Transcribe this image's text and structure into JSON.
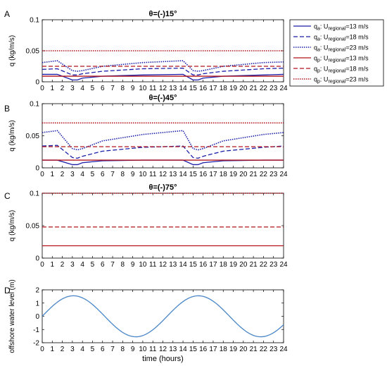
{
  "colors": {
    "blue": "#1b1fa8",
    "red": "#b2151c",
    "water": "#4a86c8",
    "axis": "#000000"
  },
  "legend": {
    "entries": [
      {
        "sub": "a",
        "regional": "regional",
        "value": "=13 m/s",
        "color": "#1b1fa8",
        "dash": "solid"
      },
      {
        "sub": "a",
        "regional": "regional",
        "value": "=18 m/s",
        "color": "#1b1fa8",
        "dash": "dashed"
      },
      {
        "sub": "a",
        "regional": "regional",
        "value": "=23 m/s",
        "color": "#1b1fa8",
        "dash": "dotted"
      },
      {
        "sub": "p",
        "regional": "regional",
        "value": "=13 m/s",
        "color": "#b2151c",
        "dash": "solid"
      },
      {
        "sub": "p",
        "regional": "regional",
        "value": "=18 m/s",
        "color": "#b2151c",
        "dash": "dashed"
      },
      {
        "sub": "p",
        "regional": "regional",
        "value": "=23 m/s",
        "color": "#b2151c",
        "dash": "dotted"
      }
    ]
  },
  "chart_data": [
    {
      "panel": "A",
      "type": "line",
      "title": "θ=(-)15°",
      "ylabel": "q (kg/m/s)",
      "xlim": [
        0,
        24
      ],
      "ylim": [
        0,
        0.1
      ],
      "yticks": [
        0,
        0.05,
        0.1
      ],
      "yticklabels": [
        "0",
        "0.05",
        "0.1"
      ],
      "xticks": [
        0,
        1,
        2,
        3,
        4,
        5,
        6,
        7,
        8,
        9,
        10,
        11,
        12,
        13,
        14,
        15,
        16,
        17,
        18,
        19,
        20,
        21,
        22,
        23,
        24
      ],
      "grid": false,
      "series": [
        {
          "name": "qa U13",
          "color": "#1b1fa8",
          "dash": "solid",
          "x": [
            0,
            1.5,
            3,
            3.5,
            4,
            6,
            10,
            14,
            15,
            15.5,
            16,
            18,
            22,
            24
          ],
          "y": [
            0.012,
            0.012,
            0.003,
            0.003,
            0.006,
            0.009,
            0.011,
            0.012,
            0.003,
            0.003,
            0.006,
            0.009,
            0.011,
            0.012
          ]
        },
        {
          "name": "qa U18",
          "color": "#1b1fa8",
          "dash": "dashed",
          "x": [
            0,
            1.5,
            3,
            3.5,
            4,
            6,
            10,
            14,
            15,
            15.5,
            16,
            18,
            22,
            24
          ],
          "y": [
            0.02,
            0.021,
            0.011,
            0.011,
            0.013,
            0.017,
            0.021,
            0.022,
            0.011,
            0.011,
            0.013,
            0.017,
            0.021,
            0.022
          ]
        },
        {
          "name": "qa U23",
          "color": "#1b1fa8",
          "dash": "dotted",
          "x": [
            0,
            1.5,
            3,
            3.5,
            4,
            6,
            10,
            14,
            15,
            15.5,
            16,
            18,
            22,
            24
          ],
          "y": [
            0.031,
            0.034,
            0.018,
            0.017,
            0.018,
            0.025,
            0.031,
            0.034,
            0.018,
            0.017,
            0.018,
            0.025,
            0.031,
            0.032
          ]
        },
        {
          "name": "qp U13",
          "color": "#b2151c",
          "dash": "solid",
          "x": [
            0,
            24
          ],
          "y": [
            0.009,
            0.009
          ]
        },
        {
          "name": "qp U18",
          "color": "#b2151c",
          "dash": "dashed",
          "x": [
            0,
            24
          ],
          "y": [
            0.025,
            0.025
          ]
        },
        {
          "name": "qp U23",
          "color": "#b2151c",
          "dash": "dotted",
          "x": [
            0,
            24
          ],
          "y": [
            0.05,
            0.05
          ]
        }
      ]
    },
    {
      "panel": "B",
      "type": "line",
      "title": "θ=(-)45°",
      "ylabel": "q (kg/m/s)",
      "xlim": [
        0,
        24
      ],
      "ylim": [
        0,
        0.1
      ],
      "yticks": [
        0,
        0.05,
        0.1
      ],
      "yticklabels": [
        "0",
        "0.05",
        "0.1"
      ],
      "xticks": [
        0,
        1,
        2,
        3,
        4,
        5,
        6,
        7,
        8,
        9,
        10,
        11,
        12,
        13,
        14,
        15,
        16,
        17,
        18,
        19,
        20,
        21,
        22,
        23,
        24
      ],
      "grid": false,
      "series": [
        {
          "name": "qa U13",
          "color": "#1b1fa8",
          "dash": "solid",
          "x": [
            0,
            1.5,
            3,
            3.5,
            4,
            6,
            10,
            14,
            15,
            15.5,
            16,
            18,
            22,
            24
          ],
          "y": [
            0.012,
            0.012,
            0.005,
            0.005,
            0.008,
            0.011,
            0.012,
            0.012,
            0.005,
            0.005,
            0.008,
            0.011,
            0.012,
            0.012
          ]
        },
        {
          "name": "qa U18",
          "color": "#1b1fa8",
          "dash": "dashed",
          "x": [
            0,
            1.5,
            3,
            3.5,
            4,
            6,
            10,
            14,
            15,
            15.5,
            16,
            18,
            22,
            24
          ],
          "y": [
            0.034,
            0.035,
            0.016,
            0.015,
            0.018,
            0.026,
            0.032,
            0.034,
            0.016,
            0.015,
            0.018,
            0.026,
            0.032,
            0.034
          ]
        },
        {
          "name": "qa U23",
          "color": "#1b1fa8",
          "dash": "dotted",
          "x": [
            0,
            1.5,
            3,
            3.5,
            4,
            6,
            10,
            14,
            15,
            15.5,
            16,
            18,
            22,
            24
          ],
          "y": [
            0.055,
            0.058,
            0.03,
            0.028,
            0.03,
            0.042,
            0.052,
            0.058,
            0.03,
            0.028,
            0.03,
            0.042,
            0.052,
            0.055
          ]
        },
        {
          "name": "qp U13",
          "color": "#b2151c",
          "dash": "solid",
          "x": [
            0,
            24
          ],
          "y": [
            0.012,
            0.012
          ]
        },
        {
          "name": "qp U18",
          "color": "#b2151c",
          "dash": "dashed",
          "x": [
            0,
            24
          ],
          "y": [
            0.033,
            0.033
          ]
        },
        {
          "name": "qp U23",
          "color": "#b2151c",
          "dash": "dotted",
          "x": [
            0,
            24
          ],
          "y": [
            0.07,
            0.07
          ]
        }
      ]
    },
    {
      "panel": "C",
      "type": "line",
      "title": "θ=(-)75°",
      "ylabel": "q (kg/m/s)",
      "xlim": [
        0,
        24
      ],
      "ylim": [
        0,
        0.1
      ],
      "yticks": [
        0,
        0.05,
        0.1
      ],
      "yticklabels": [
        "0",
        "0.05",
        "0.1"
      ],
      "xticks": [
        0,
        1,
        2,
        3,
        4,
        5,
        6,
        7,
        8,
        9,
        10,
        11,
        12,
        13,
        14,
        15,
        16,
        17,
        18,
        19,
        20,
        21,
        22,
        23,
        24
      ],
      "grid": false,
      "series": [
        {
          "name": "qp U13",
          "color": "#b2151c",
          "dash": "solid",
          "x": [
            0,
            24
          ],
          "y": [
            0.019,
            0.019
          ]
        },
        {
          "name": "qp U18",
          "color": "#b2151c",
          "dash": "dashed",
          "x": [
            0,
            24
          ],
          "y": [
            0.048,
            0.048
          ]
        },
        {
          "name": "qp U23",
          "color": "#b2151c",
          "dash": "dotted",
          "x": [
            0,
            24
          ],
          "y": [
            0.1,
            0.1
          ]
        }
      ]
    },
    {
      "panel": "D",
      "type": "line",
      "title": "",
      "ylabel": "offshore water level (m)",
      "xlabel": "time (hours)",
      "xlim": [
        0,
        24
      ],
      "ylim": [
        -2,
        2
      ],
      "yticks": [
        -2,
        -1,
        0,
        1,
        2
      ],
      "yticklabels": [
        "-2",
        "-1",
        "0",
        "1",
        "2"
      ],
      "xticks": [
        0,
        1,
        2,
        3,
        4,
        5,
        6,
        7,
        8,
        9,
        10,
        11,
        12,
        13,
        14,
        15,
        16,
        17,
        18,
        19,
        20,
        21,
        22,
        23,
        24
      ],
      "grid": false,
      "series": [
        {
          "name": "water level",
          "color": "#4a86c8",
          "dash": "solid",
          "function": {
            "kind": "sine",
            "amplitude": 1.55,
            "period": 12.42,
            "phase": 0
          }
        }
      ]
    }
  ]
}
